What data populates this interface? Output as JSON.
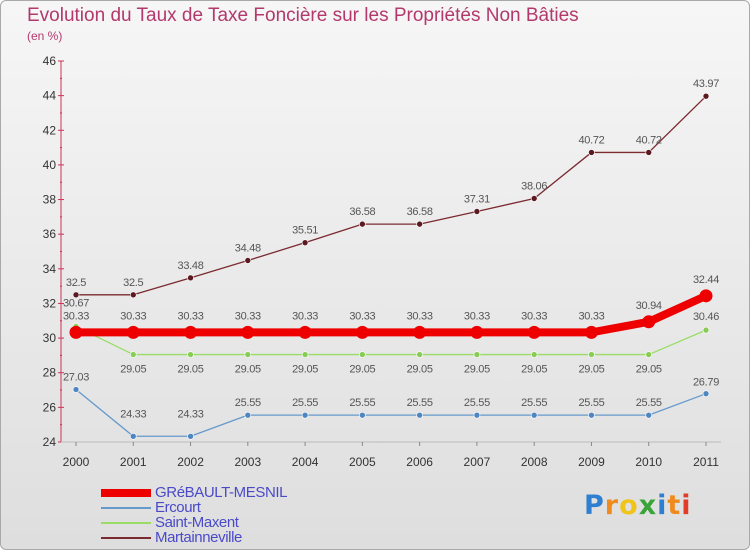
{
  "header": {
    "title": "Evolution du Taux de Taxe Foncière sur les Propriétés Non Bâties",
    "subtitle": "(en %)"
  },
  "chart_data": {
    "type": "line",
    "title": "Evolution du Taux de Taxe Foncière sur les Propriétés Non Bâties",
    "ylabel": "(en %)",
    "xlabel": "",
    "ylim": [
      24,
      46
    ],
    "yticks": [
      24,
      26,
      28,
      30,
      32,
      34,
      36,
      38,
      40,
      42,
      44,
      46
    ],
    "categories": [
      "2000",
      "2001",
      "2002",
      "2003",
      "2004",
      "2005",
      "2006",
      "2007",
      "2008",
      "2009",
      "2010",
      "2011"
    ],
    "series": [
      {
        "name": "Martainneville",
        "color": "#7b2a30",
        "marker": "#5a1a1f",
        "values": [
          32.5,
          32.5,
          33.48,
          34.48,
          35.51,
          36.58,
          36.58,
          37.31,
          38.06,
          40.72,
          40.72,
          43.97
        ],
        "labels": [
          "32.5",
          "32.5",
          "33.48",
          "34.48",
          "35.51",
          "36.58",
          "36.58",
          "37.31",
          "38.06",
          "40.72",
          "40.72",
          "43.97"
        ]
      },
      {
        "name": "Saint-Maxent",
        "color": "#99dd66",
        "marker": "#88cc55",
        "values": [
          30.67,
          29.05,
          29.05,
          29.05,
          29.05,
          29.05,
          29.05,
          29.05,
          29.05,
          29.05,
          29.05,
          30.46
        ],
        "labels": [
          "30.67",
          "29.05",
          "29.05",
          "29.05",
          "29.05",
          "29.05",
          "29.05",
          "29.05",
          "29.05",
          "29.05",
          "29.05",
          "30.46"
        ]
      },
      {
        "name": "Ercourt",
        "color": "#6699cc",
        "marker": "#4f86c0",
        "values": [
          27.03,
          24.33,
          24.33,
          25.55,
          25.55,
          25.55,
          25.55,
          25.55,
          25.55,
          25.55,
          25.55,
          26.79
        ],
        "labels": [
          "27.03",
          "24.33",
          "24.33",
          "25.55",
          "25.55",
          "25.55",
          "25.55",
          "25.55",
          "25.55",
          "25.55",
          "25.55",
          "26.79"
        ]
      },
      {
        "name": "GRéBAULT-MESNIL",
        "color": "#ee0000",
        "marker": "#ee0000",
        "values": [
          30.33,
          30.33,
          30.33,
          30.33,
          30.33,
          30.33,
          30.33,
          30.33,
          30.33,
          30.33,
          30.94,
          32.44
        ],
        "labels": [
          "30.33",
          "30.33",
          "30.33",
          "30.33",
          "30.33",
          "30.33",
          "30.33",
          "30.33",
          "30.33",
          "30.33",
          "30.94",
          "32.44"
        ]
      }
    ],
    "legend": [
      {
        "name": "GRéBAULT-MESNIL",
        "color": "#ee0000"
      },
      {
        "name": "Ercourt",
        "color": "#6699cc"
      },
      {
        "name": "Saint-Maxent",
        "color": "#99dd66"
      },
      {
        "name": "Martainneville",
        "color": "#7b2a30"
      }
    ]
  },
  "logo": {
    "letters": [
      "P",
      "r",
      "o",
      "x",
      "i",
      "t",
      "i"
    ],
    "colors": [
      "#2f7fd0",
      "#f08a1c",
      "#f0c419",
      "#3aa33a",
      "#2f7fd0",
      "#f08a1c",
      "#e23b2a"
    ]
  }
}
